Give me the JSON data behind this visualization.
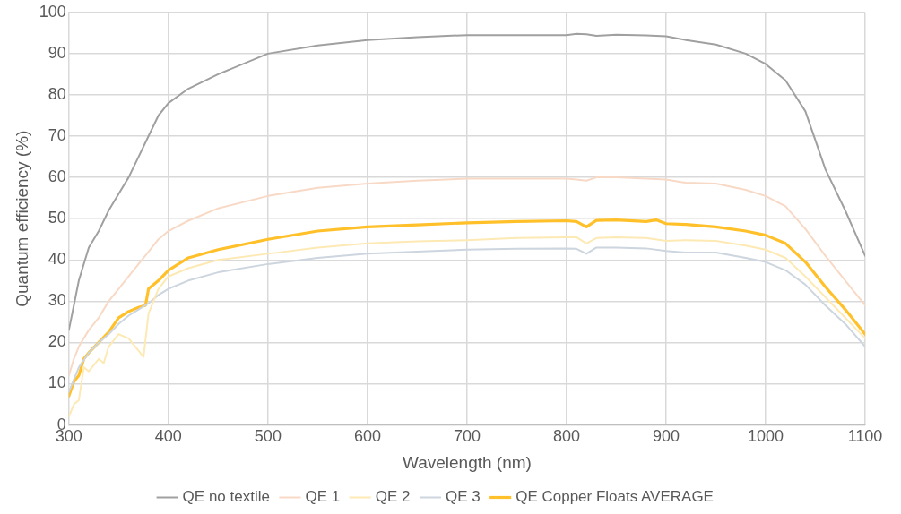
{
  "chart_data": {
    "type": "line",
    "xlabel": "Wavelength (nm)",
    "ylabel": "Quantum efficiency (%)",
    "xlim": [
      300,
      1100
    ],
    "xticks": [
      300,
      400,
      500,
      600,
      700,
      800,
      900,
      1000,
      1100
    ],
    "ylim": [
      0,
      100
    ],
    "yticks": [
      0,
      10,
      20,
      30,
      40,
      50,
      60,
      70,
      80,
      90,
      100
    ],
    "grid": true,
    "legend": "bottom",
    "marker": "none",
    "line_style": "solid",
    "series": [
      {
        "name": "QE no textile",
        "color": "#a0a0a0",
        "x": [
          300,
          305,
          310,
          320,
          330,
          340,
          350,
          360,
          370,
          380,
          390,
          400,
          420,
          450,
          500,
          550,
          600,
          650,
          700,
          750,
          800,
          810,
          820,
          830,
          850,
          880,
          900,
          920,
          950,
          980,
          1000,
          1020,
          1040,
          1060,
          1080,
          1100
        ],
        "values": [
          23,
          29,
          35,
          43,
          47,
          52,
          56,
          60,
          65,
          70,
          75,
          78,
          81.5,
          85,
          90,
          92,
          93.3,
          94,
          94.5,
          94.5,
          94.5,
          94.8,
          94.7,
          94.3,
          94.6,
          94.4,
          94.2,
          93.3,
          92.2,
          90,
          87.5,
          83.5,
          76,
          62,
          52,
          41
        ]
      },
      {
        "name": "QE 1",
        "color": "#f8d9c6",
        "x": [
          300,
          305,
          310,
          320,
          330,
          340,
          350,
          360,
          370,
          380,
          390,
          400,
          420,
          450,
          500,
          550,
          600,
          650,
          700,
          750,
          800,
          810,
          820,
          830,
          850,
          880,
          900,
          920,
          950,
          980,
          1000,
          1020,
          1040,
          1060,
          1080,
          1100
        ],
        "values": [
          12,
          16,
          19,
          23,
          26,
          30,
          33,
          36,
          39,
          42,
          45,
          47,
          49.5,
          52.5,
          55.5,
          57.5,
          58.5,
          59.2,
          59.7,
          59.7,
          59.7,
          59.5,
          59.2,
          60,
          60,
          59.7,
          59.5,
          58.7,
          58.5,
          57,
          55.5,
          53,
          47.5,
          41,
          35,
          29
        ]
      },
      {
        "name": "QE 2",
        "color": "#fde9b4",
        "x": [
          300,
          305,
          310,
          315,
          320,
          330,
          335,
          340,
          350,
          360,
          370,
          375,
          380,
          385,
          390,
          400,
          420,
          450,
          500,
          550,
          600,
          650,
          700,
          750,
          800,
          810,
          820,
          830,
          850,
          880,
          900,
          920,
          950,
          980,
          1000,
          1020,
          1040,
          1060,
          1080,
          1100
        ],
        "values": [
          2,
          5,
          6,
          14,
          13,
          16,
          15,
          19,
          22,
          21,
          18,
          16.5,
          27,
          30,
          33,
          36,
          38,
          40,
          41.5,
          43,
          44,
          44.5,
          44.8,
          45.3,
          45.5,
          45.5,
          44,
          45.3,
          45.5,
          45.3,
          44.6,
          44.8,
          44.6,
          43.5,
          42.5,
          40.5,
          36,
          31,
          26,
          21
        ]
      },
      {
        "name": "QE 3",
        "color": "#cdd5df",
        "x": [
          300,
          310,
          320,
          330,
          340,
          350,
          360,
          370,
          380,
          390,
          400,
          420,
          450,
          500,
          550,
          600,
          650,
          700,
          750,
          800,
          810,
          820,
          830,
          850,
          880,
          900,
          920,
          950,
          980,
          1000,
          1020,
          1040,
          1060,
          1080,
          1100
        ],
        "values": [
          8,
          14,
          17.5,
          20,
          22,
          24.5,
          26.5,
          28,
          29.5,
          31.5,
          33,
          35,
          37,
          39,
          40.5,
          41.5,
          42,
          42.5,
          42.7,
          42.8,
          42.7,
          41.5,
          43,
          43,
          42.8,
          42.2,
          41.8,
          41.8,
          40.5,
          39.5,
          37.5,
          34,
          29,
          24.5,
          19
        ]
      },
      {
        "name": "QE Copper Floats AVERAGE",
        "color": "#ffc02a",
        "x": [
          300,
          305,
          310,
          315,
          320,
          330,
          340,
          350,
          360,
          370,
          377,
          380,
          390,
          400,
          420,
          450,
          500,
          550,
          600,
          650,
          700,
          750,
          800,
          810,
          820,
          830,
          850,
          880,
          890,
          900,
          920,
          950,
          980,
          1000,
          1020,
          1040,
          1060,
          1080,
          1100
        ],
        "values": [
          7,
          10.5,
          12,
          16,
          17.5,
          20,
          22.5,
          26,
          27.5,
          28.5,
          29,
          33,
          35,
          37.5,
          40.5,
          42.5,
          45,
          47,
          48,
          48.5,
          49,
          49.3,
          49.5,
          49.3,
          48,
          49.6,
          49.7,
          49.3,
          49.7,
          48.8,
          48.6,
          48,
          47,
          46,
          44,
          39.5,
          33.5,
          28,
          22
        ]
      }
    ]
  }
}
